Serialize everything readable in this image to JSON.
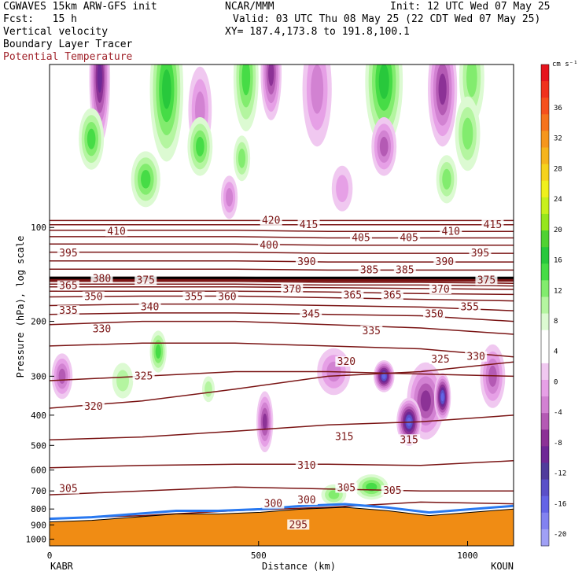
{
  "header": {
    "model": "CGWAVES 15km ARW-GFS init",
    "org": "NCAR/MMM",
    "init": "Init: 12 UTC Wed 07 May 25",
    "fcst": "Fcst:   15 h",
    "valid": "Valid: 03 UTC Thu 08 May 25 (22 CDT Wed 07 May 25)",
    "field1": "Vertical velocity",
    "xy": "XY= 187.4,173.8 to 191.8,100.1",
    "field2": "Boundary Layer Tracer",
    "field3": "Potential Temperature"
  },
  "colors": {
    "maroon": "#7a1414",
    "terrain": "#f08c14",
    "accent_text": "#a0222a"
  },
  "chart_data": {
    "type": "heatmap",
    "xlabel": "Distance (km)",
    "ylabel": "Pressure (hPa), log scale",
    "xlim": [
      0,
      1110
    ],
    "ylim_log": [
      1050,
      30
    ],
    "x_ticks": [
      0,
      500,
      1000
    ],
    "y_ticks": [
      100,
      200,
      300,
      400,
      500,
      600,
      700,
      800,
      900,
      1000
    ],
    "endpoints": {
      "left": "KABR",
      "right": "KOUN"
    },
    "colorbar": {
      "unit": "cm s⁻¹",
      "labels": [
        "36",
        "32",
        "28",
        "24",
        "20",
        "16",
        "12",
        "8",
        "4",
        "0",
        "-4",
        "-8",
        "-12",
        "-16",
        "-20"
      ],
      "colors": [
        "#e6141e",
        "#f0321e",
        "#f5501e",
        "#f5731e",
        "#f5961e",
        "#f5b41e",
        "#f5d21e",
        "#f0f01e",
        "#c8f01e",
        "#96e61e",
        "#50d232",
        "#28c83c",
        "#46dc46",
        "#82ec6e",
        "#b4f5a0",
        "#dcfad2",
        "#ffffff",
        "#ffffff",
        "#f0c8f0",
        "#e6a0e6",
        "#d282d2",
        "#b45ab4",
        "#8c3296",
        "#6e2896",
        "#503c9c",
        "#5a50c8",
        "#6464e6",
        "#8282f0",
        "#a0a0f5"
      ]
    },
    "theta_contours": [
      {
        "value": 295,
        "p": [
          1000,
          1000,
          995,
          998,
          995,
          992
        ]
      },
      {
        "value": 300,
        "p": [
          860,
          840,
          810,
          790,
          760,
          770
        ]
      },
      {
        "value": 305,
        "p": [
          720,
          700,
          680,
          690,
          700,
          700
        ]
      },
      {
        "value": 310,
        "p": [
          590,
          580,
          575,
          575,
          580,
          560
        ]
      },
      {
        "value": 315,
        "p": [
          480,
          470,
          450,
          430,
          420,
          400
        ]
      },
      {
        "value": 320,
        "p": [
          380,
          360,
          330,
          300,
          290,
          270
        ]
      },
      {
        "value": 325,
        "p": [
          310,
          300,
          290,
          290,
          295,
          300
        ]
      },
      {
        "value": 330,
        "p": [
          240,
          235,
          235,
          240,
          245,
          260
        ]
      },
      {
        "value": 335,
        "p": [
          205,
          200,
          200,
          205,
          210,
          220
        ]
      },
      {
        "value": 340,
        "p": [
          190,
          188,
          188,
          190,
          192,
          200
        ]
      },
      {
        "value": 345,
        "p": [
          178,
          176,
          176,
          178,
          180,
          185
        ]
      },
      {
        "value": 350,
        "p": [
          167,
          166,
          166,
          168,
          170,
          172
        ]
      },
      {
        "value": 355,
        "p": [
          160,
          160,
          160,
          161,
          163,
          164
        ]
      },
      {
        "value": 360,
        "p": [
          155,
          155,
          155,
          156,
          157,
          158
        ]
      },
      {
        "value": 365,
        "p": [
          152,
          152,
          152,
          153,
          153,
          154
        ]
      },
      {
        "value": 370,
        "p": [
          149,
          149,
          149,
          150,
          150,
          151
        ]
      },
      {
        "value": 375,
        "p": [
          147,
          147,
          147,
          148,
          148,
          148
        ]
      },
      {
        "value": 380,
        "p": [
          145,
          145,
          145,
          146,
          146,
          146
        ]
      },
      {
        "value": 385,
        "p": [
          136,
          136,
          136,
          137,
          137,
          137
        ]
      },
      {
        "value": 390,
        "p": [
          128,
          128,
          128,
          129,
          129,
          129
        ]
      },
      {
        "value": 395,
        "p": [
          120,
          120,
          120,
          121,
          121,
          121
        ]
      },
      {
        "value": 400,
        "p": [
          113,
          113,
          113,
          114,
          114,
          114
        ]
      },
      {
        "value": 405,
        "p": [
          107,
          107,
          107,
          108,
          108,
          108
        ]
      },
      {
        "value": 410,
        "p": [
          102,
          102,
          102,
          103,
          103,
          103
        ]
      },
      {
        "value": 415,
        "p": [
          98,
          98,
          98,
          98,
          98,
          98
        ]
      },
      {
        "value": 420,
        "p": [
          95,
          95,
          95,
          95,
          95,
          95
        ]
      }
    ],
    "contour_labels": [
      {
        "text": "420",
        "x": 530,
        "p": 95
      },
      {
        "text": "415",
        "x": 620,
        "p": 98
      },
      {
        "text": "415",
        "x": 1060,
        "p": 98
      },
      {
        "text": "410",
        "x": 160,
        "p": 103
      },
      {
        "text": "410",
        "x": 960,
        "p": 103
      },
      {
        "text": "405",
        "x": 745,
        "p": 108
      },
      {
        "text": "405",
        "x": 860,
        "p": 108
      },
      {
        "text": "400",
        "x": 525,
        "p": 114
      },
      {
        "text": "395",
        "x": 45,
        "p": 121
      },
      {
        "text": "395",
        "x": 1030,
        "p": 121
      },
      {
        "text": "390",
        "x": 615,
        "p": 129
      },
      {
        "text": "390",
        "x": 945,
        "p": 129
      },
      {
        "text": "385",
        "x": 765,
        "p": 137
      },
      {
        "text": "385",
        "x": 850,
        "p": 137
      },
      {
        "text": "380",
        "x": 125,
        "p": 146
      },
      {
        "text": "375",
        "x": 230,
        "p": 148
      },
      {
        "text": "375",
        "x": 1045,
        "p": 148
      },
      {
        "text": "370",
        "x": 580,
        "p": 158
      },
      {
        "text": "370",
        "x": 935,
        "p": 158
      },
      {
        "text": "365",
        "x": 45,
        "p": 154
      },
      {
        "text": "365",
        "x": 725,
        "p": 165
      },
      {
        "text": "365",
        "x": 820,
        "p": 165
      },
      {
        "text": "360",
        "x": 425,
        "p": 167
      },
      {
        "text": "355",
        "x": 345,
        "p": 167
      },
      {
        "text": "355",
        "x": 1005,
        "p": 180
      },
      {
        "text": "350",
        "x": 105,
        "p": 167
      },
      {
        "text": "350",
        "x": 920,
        "p": 190
      },
      {
        "text": "345",
        "x": 625,
        "p": 190
      },
      {
        "text": "340",
        "x": 240,
        "p": 180
      },
      {
        "text": "335",
        "x": 45,
        "p": 185
      },
      {
        "text": "335",
        "x": 770,
        "p": 215
      },
      {
        "text": "330",
        "x": 125,
        "p": 212
      },
      {
        "text": "330",
        "x": 1020,
        "p": 260
      },
      {
        "text": "325",
        "x": 225,
        "p": 300
      },
      {
        "text": "325",
        "x": 935,
        "p": 265
      },
      {
        "text": "320",
        "x": 105,
        "p": 375
      },
      {
        "text": "320",
        "x": 710,
        "p": 270
      },
      {
        "text": "315",
        "x": 705,
        "p": 470
      },
      {
        "text": "315",
        "x": 860,
        "p": 480
      },
      {
        "text": "310",
        "x": 615,
        "p": 580
      },
      {
        "text": "305",
        "x": 45,
        "p": 690
      },
      {
        "text": "305",
        "x": 710,
        "p": 685
      },
      {
        "text": "305",
        "x": 820,
        "p": 700
      },
      {
        "text": "300",
        "x": 535,
        "p": 770
      },
      {
        "text": "300",
        "x": 615,
        "p": 750
      },
      {
        "text": "295",
        "x": 595,
        "p": 900
      }
    ],
    "updraft_blobs": [
      {
        "x": 120,
        "p": 33,
        "rx": 25,
        "rp": 15,
        "sign": -1,
        "mag": 12
      },
      {
        "x": 280,
        "p": 36,
        "rx": 40,
        "rp": 18,
        "sign": 1,
        "mag": 10
      },
      {
        "x": 360,
        "p": 42,
        "rx": 28,
        "rp": 12,
        "sign": -1,
        "mag": 6
      },
      {
        "x": 470,
        "p": 33,
        "rx": 30,
        "rp": 12,
        "sign": 1,
        "mag": 8
      },
      {
        "x": 530,
        "p": 32,
        "rx": 25,
        "rp": 10,
        "sign": -1,
        "mag": 10
      },
      {
        "x": 640,
        "p": 36,
        "rx": 35,
        "rp": 14,
        "sign": -1,
        "mag": 6
      },
      {
        "x": 800,
        "p": 34,
        "rx": 45,
        "rp": 15,
        "sign": 1,
        "mag": 10
      },
      {
        "x": 940,
        "p": 36,
        "rx": 35,
        "rp": 14,
        "sign": -1,
        "mag": 10
      },
      {
        "x": 1010,
        "p": 33,
        "rx": 30,
        "rp": 10,
        "sign": 1,
        "mag": 6
      },
      {
        "x": 100,
        "p": 52,
        "rx": 30,
        "rp": 10,
        "sign": 1,
        "mag": 8
      },
      {
        "x": 360,
        "p": 55,
        "rx": 30,
        "rp": 10,
        "sign": 1,
        "mag": 8
      },
      {
        "x": 460,
        "p": 60,
        "rx": 20,
        "rp": 8,
        "sign": 1,
        "mag": 6
      },
      {
        "x": 800,
        "p": 55,
        "rx": 30,
        "rp": 10,
        "sign": -1,
        "mag": 8
      },
      {
        "x": 1000,
        "p": 50,
        "rx": 30,
        "rp": 12,
        "sign": 1,
        "mag": 6
      },
      {
        "x": 230,
        "p": 70,
        "rx": 35,
        "rp": 12,
        "sign": 1,
        "mag": 8
      },
      {
        "x": 430,
        "p": 80,
        "rx": 20,
        "rp": 10,
        "sign": -1,
        "mag": 6
      },
      {
        "x": 700,
        "p": 75,
        "rx": 25,
        "rp": 10,
        "sign": -1,
        "mag": 4
      },
      {
        "x": 950,
        "p": 70,
        "rx": 25,
        "rp": 10,
        "sign": 1,
        "mag": 6
      },
      {
        "x": 30,
        "p": 300,
        "rx": 25,
        "rp": 40,
        "sign": -1,
        "mag": 8
      },
      {
        "x": 175,
        "p": 310,
        "rx": 25,
        "rp": 30,
        "sign": 1,
        "mag": 4
      },
      {
        "x": 380,
        "p": 330,
        "rx": 15,
        "rp": 20,
        "sign": 1,
        "mag": 4
      },
      {
        "x": 515,
        "p": 420,
        "rx": 20,
        "rp": 80,
        "sign": -1,
        "mag": 10
      },
      {
        "x": 680,
        "p": 290,
        "rx": 40,
        "rp": 40,
        "sign": -1,
        "mag": 6
      },
      {
        "x": 900,
        "p": 360,
        "rx": 45,
        "rp": 90,
        "sign": -1,
        "mag": 10
      },
      {
        "x": 860,
        "p": 420,
        "rx": 30,
        "rp": 60,
        "sign": -1,
        "mag": 16
      },
      {
        "x": 940,
        "p": 350,
        "rx": 20,
        "rp": 50,
        "sign": -1,
        "mag": 16
      },
      {
        "x": 800,
        "p": 300,
        "rx": 25,
        "rp": 25,
        "sign": -1,
        "mag": 16
      },
      {
        "x": 1060,
        "p": 300,
        "rx": 30,
        "rp": 60,
        "sign": -1,
        "mag": 8
      },
      {
        "x": 260,
        "p": 250,
        "rx": 20,
        "rp": 30,
        "sign": 1,
        "mag": 8
      },
      {
        "x": 770,
        "p": 680,
        "rx": 40,
        "rp": 40,
        "sign": 1,
        "mag": 8
      },
      {
        "x": 680,
        "p": 720,
        "rx": 30,
        "rp": 30,
        "sign": 1,
        "mag": 6
      }
    ],
    "terrain_surface_p": [
      880,
      870,
      850,
      830,
      830,
      820,
      800,
      790,
      810,
      840,
      820,
      800
    ]
  }
}
